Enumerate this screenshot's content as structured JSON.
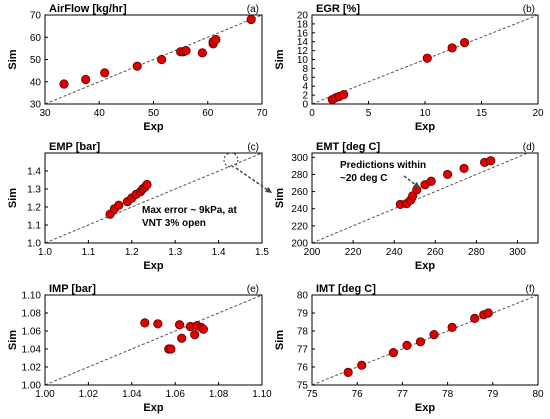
{
  "chart_data": [
    {
      "type": "scatter",
      "panel_label": "(a)",
      "title": "AirFlow [kg/hr]",
      "xlabel": "Exp",
      "ylabel": "Sim",
      "xlim": [
        30,
        70
      ],
      "ylim": [
        30,
        70
      ],
      "xticks": [
        "30",
        "40",
        "50",
        "60",
        "70"
      ],
      "yticks": [
        "30",
        "40",
        "50",
        "60",
        "70"
      ],
      "x": [
        33.5,
        37.5,
        41,
        47,
        51.5,
        55,
        55.5,
        56,
        59,
        61,
        61,
        61.5,
        68
      ],
      "y": [
        39,
        41,
        44,
        47,
        50,
        53.5,
        53.5,
        54,
        53,
        57,
        58,
        59,
        68
      ],
      "reference_line": "y = x",
      "annotation": ""
    },
    {
      "type": "scatter",
      "panel_label": "(b)",
      "title": "EGR [%]",
      "xlabel": "Exp",
      "ylabel": "Sim",
      "xlim": [
        0,
        20
      ],
      "ylim": [
        0,
        20
      ],
      "xticks": [
        "0",
        "5",
        "10",
        "15",
        "20"
      ],
      "yticks": [
        "0",
        "2",
        "4",
        "6",
        "8",
        "10",
        "12",
        "14",
        "16",
        "18",
        "20"
      ],
      "x": [
        1.8,
        2.1,
        2.4,
        2.8,
        10.2,
        12.4,
        13.5
      ],
      "y": [
        1.0,
        1.4,
        1.7,
        2.1,
        10.3,
        12.6,
        13.8
      ],
      "reference_line": "y = x",
      "annotation": ""
    },
    {
      "type": "scatter",
      "panel_label": "(c)",
      "title": "EMP [bar]",
      "xlabel": "Exp",
      "ylabel": "Sim",
      "xlim": [
        1.0,
        1.5
      ],
      "ylim": [
        1.0,
        1.5
      ],
      "xticks": [
        "1.0",
        "1.1",
        "1.2",
        "1.3",
        "1.4",
        "1.5"
      ],
      "yticks": [
        "1.0",
        "1.1",
        "1.2",
        "1.3",
        "1.4"
      ],
      "x": [
        1.15,
        1.16,
        1.17,
        1.19,
        1.2,
        1.21,
        1.22,
        1.225,
        1.23,
        1.235
      ],
      "y": [
        1.16,
        1.19,
        1.21,
        1.23,
        1.25,
        1.27,
        1.285,
        1.3,
        1.31,
        1.325
      ],
      "reference_line": "y = x",
      "annotation": [
        "Max error ~ 9kPa, at",
        "VNT 3% open"
      ]
    },
    {
      "type": "scatter",
      "panel_label": "(d)",
      "title": "EMT [deg C]",
      "xlabel": "Exp",
      "ylabel": "Sim",
      "xlim": [
        200,
        310
      ],
      "ylim": [
        200,
        305
      ],
      "xticks": [
        "200",
        "220",
        "240",
        "260",
        "280",
        "300"
      ],
      "yticks": [
        "200",
        "220",
        "240",
        "260",
        "280",
        "300"
      ],
      "x": [
        243,
        246,
        248,
        249,
        251,
        255,
        258,
        266,
        274,
        284,
        287
      ],
      "y": [
        245,
        246,
        250,
        255,
        262,
        268,
        272,
        280,
        287,
        294,
        296
      ],
      "reference_line": "y = x",
      "annotation": [
        "Predictions within",
        "~20 deg C"
      ]
    },
    {
      "type": "scatter",
      "panel_label": "(e)",
      "title": "IMP [bar]",
      "xlabel": "Exp",
      "ylabel": "Sim",
      "xlim": [
        1.0,
        1.1
      ],
      "ylim": [
        1.0,
        1.1
      ],
      "xticks": [
        "1.00",
        "1.02",
        "1.04",
        "1.06",
        "1.08",
        "1.10"
      ],
      "yticks": [
        "1.00",
        "1.02",
        "1.04",
        "1.06",
        "1.08",
        "1.10"
      ],
      "x": [
        1.046,
        1.052,
        1.057,
        1.058,
        1.062,
        1.063,
        1.067,
        1.069,
        1.07,
        1.072,
        1.073
      ],
      "y": [
        1.069,
        1.068,
        1.04,
        1.04,
        1.067,
        1.052,
        1.065,
        1.056,
        1.066,
        1.064,
        1.062
      ],
      "reference_line": "y = x",
      "annotation": ""
    },
    {
      "type": "scatter",
      "panel_label": "(f)",
      "title": "IMT [deg C]",
      "xlabel": "Exp",
      "ylabel": "Sim",
      "xlim": [
        75,
        80
      ],
      "ylim": [
        75,
        80
      ],
      "xticks": [
        "75",
        "76",
        "77",
        "78",
        "79",
        "80"
      ],
      "yticks": [
        "75",
        "76",
        "77",
        "78",
        "79",
        "80"
      ],
      "x": [
        75.8,
        76.1,
        76.8,
        77.1,
        77.4,
        77.7,
        78.1,
        78.6,
        78.8,
        78.9
      ],
      "y": [
        75.7,
        76.1,
        76.8,
        77.2,
        77.4,
        77.8,
        78.2,
        78.7,
        78.9,
        79.0
      ],
      "reference_line": "y = x",
      "annotation": ""
    }
  ]
}
